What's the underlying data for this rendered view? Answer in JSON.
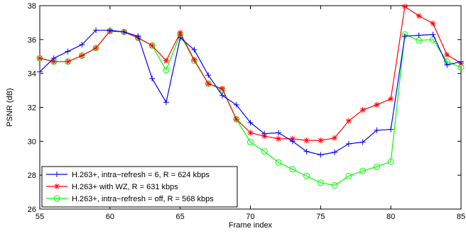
{
  "chart_data": {
    "type": "line",
    "title": "",
    "xlabel": "Frame index",
    "ylabel": "PSNR (dB)",
    "xlim": [
      55,
      85
    ],
    "ylim": [
      26,
      38
    ],
    "xticks": [
      55,
      60,
      65,
      70,
      75,
      80,
      85
    ],
    "yticks": [
      26,
      28,
      30,
      32,
      34,
      36,
      38
    ],
    "grid": false,
    "legend_position": "lower-left",
    "x": [
      55,
      56,
      57,
      58,
      59,
      60,
      61,
      62,
      63,
      64,
      65,
      66,
      67,
      68,
      69,
      70,
      71,
      72,
      73,
      74,
      75,
      76,
      77,
      78,
      79,
      80,
      81,
      82,
      83,
      84,
      85
    ],
    "series": [
      {
        "name": "H.263+, intra−refresh = 6, R = 624 kbps",
        "color": "#0000ff",
        "marker": "plus",
        "values": [
          34.1,
          34.9,
          35.3,
          35.7,
          36.55,
          36.55,
          36.45,
          36.2,
          33.7,
          32.3,
          36.1,
          35.4,
          33.9,
          32.7,
          32.15,
          31.1,
          30.45,
          30.5,
          30.0,
          29.4,
          29.2,
          29.35,
          29.85,
          29.95,
          30.65,
          30.7,
          36.2,
          36.25,
          36.3,
          34.5,
          34.7
        ]
      },
      {
        "name": "H.263+ with WZ, R = 631 kbps",
        "color": "#ff0000",
        "marker": "star",
        "values": [
          34.9,
          34.7,
          34.7,
          35.05,
          35.5,
          36.5,
          36.45,
          36.1,
          35.65,
          34.75,
          36.4,
          34.8,
          33.4,
          33.1,
          31.3,
          30.5,
          30.3,
          30.15,
          30.15,
          30.05,
          30.05,
          30.2,
          31.2,
          31.85,
          32.15,
          32.5,
          37.95,
          37.4,
          36.95,
          35.1,
          34.6
        ]
      },
      {
        "name": "H.263+, intra−refresh = off, R = 568 kbps",
        "color": "#00ff00",
        "marker": "circle",
        "values": [
          34.9,
          34.7,
          34.7,
          35.05,
          35.5,
          36.5,
          36.45,
          36.1,
          35.65,
          34.2,
          36.3,
          34.75,
          33.4,
          33.05,
          31.3,
          29.95,
          29.4,
          28.75,
          28.35,
          27.95,
          27.55,
          27.4,
          27.95,
          28.25,
          28.5,
          28.8,
          36.3,
          35.95,
          36.0,
          34.7,
          34.35
        ]
      }
    ]
  }
}
